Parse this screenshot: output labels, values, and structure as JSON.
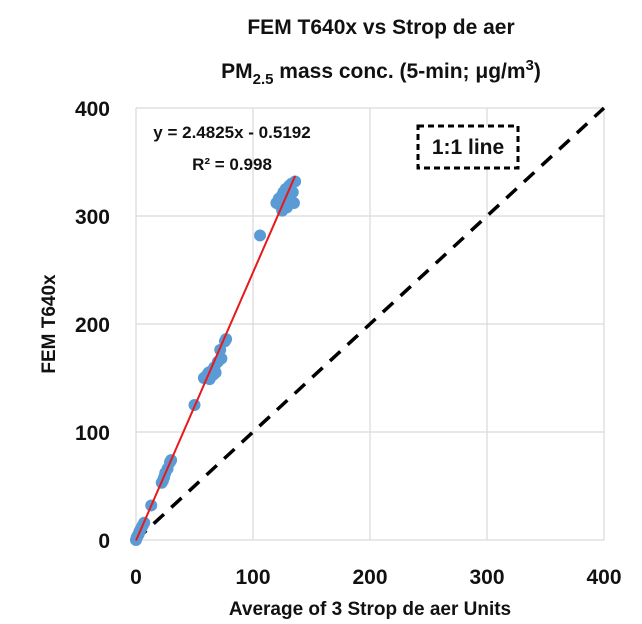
{
  "chart_data": {
    "type": "scatter",
    "title_line1": "FEM T640x vs Strop de aer",
    "title_line2_prefix": "PM",
    "title_line2_subscript": "2.5",
    "title_line2_mid": " mass conc. (5-min; μg/m",
    "title_line2_superscript": "3",
    "title_line2_suffix": ")",
    "xlabel": "Average of 3 Strop de aer Units",
    "ylabel": "FEM T640x",
    "xlim": [
      0,
      400
    ],
    "ylim": [
      0,
      400
    ],
    "x_ticks": [
      "0",
      "100",
      "200",
      "300",
      "400"
    ],
    "y_ticks": [
      "0",
      "100",
      "200",
      "300",
      "400"
    ],
    "grid": true,
    "regression": {
      "slope": 2.4825,
      "intercept": -0.5192,
      "equation": "y = 2.4825x - 0.5192",
      "r2_label": "R² = 0.998",
      "line_color": "#e8191b"
    },
    "identity_line_label": "1:1 line",
    "marker_color": "#5b9bd5",
    "points": [
      {
        "x": 0,
        "y": 0
      },
      {
        "x": 0.5,
        "y": 2
      },
      {
        "x": 1,
        "y": 3
      },
      {
        "x": 1.5,
        "y": 4
      },
      {
        "x": 2,
        "y": 5
      },
      {
        "x": 2.5,
        "y": 6
      },
      {
        "x": 3,
        "y": 8
      },
      {
        "x": 4,
        "y": 10
      },
      {
        "x": 5,
        "y": 12
      },
      {
        "x": 6,
        "y": 14
      },
      {
        "x": 7,
        "y": 16
      },
      {
        "x": 13,
        "y": 32
      },
      {
        "x": 22,
        "y": 53
      },
      {
        "x": 23,
        "y": 55
      },
      {
        "x": 24,
        "y": 58
      },
      {
        "x": 25,
        "y": 62
      },
      {
        "x": 27,
        "y": 66
      },
      {
        "x": 29,
        "y": 72
      },
      {
        "x": 30,
        "y": 74
      },
      {
        "x": 50,
        "y": 125
      },
      {
        "x": 58,
        "y": 150
      },
      {
        "x": 60,
        "y": 152
      },
      {
        "x": 62,
        "y": 155
      },
      {
        "x": 63,
        "y": 149
      },
      {
        "x": 65,
        "y": 157
      },
      {
        "x": 66,
        "y": 153
      },
      {
        "x": 67,
        "y": 160
      },
      {
        "x": 68,
        "y": 155
      },
      {
        "x": 70,
        "y": 165
      },
      {
        "x": 72,
        "y": 176
      },
      {
        "x": 73,
        "y": 168
      },
      {
        "x": 76,
        "y": 184
      },
      {
        "x": 77,
        "y": 186
      },
      {
        "x": 106,
        "y": 282
      },
      {
        "x": 120,
        "y": 312
      },
      {
        "x": 122,
        "y": 316
      },
      {
        "x": 123,
        "y": 310
      },
      {
        "x": 124,
        "y": 318
      },
      {
        "x": 125,
        "y": 305
      },
      {
        "x": 126,
        "y": 322
      },
      {
        "x": 127,
        "y": 314
      },
      {
        "x": 128,
        "y": 325
      },
      {
        "x": 129,
        "y": 308
      },
      {
        "x": 130,
        "y": 320
      },
      {
        "x": 131,
        "y": 328
      },
      {
        "x": 132,
        "y": 316
      },
      {
        "x": 133,
        "y": 330
      },
      {
        "x": 134,
        "y": 322
      },
      {
        "x": 135,
        "y": 312
      },
      {
        "x": 136,
        "y": 332
      }
    ]
  }
}
